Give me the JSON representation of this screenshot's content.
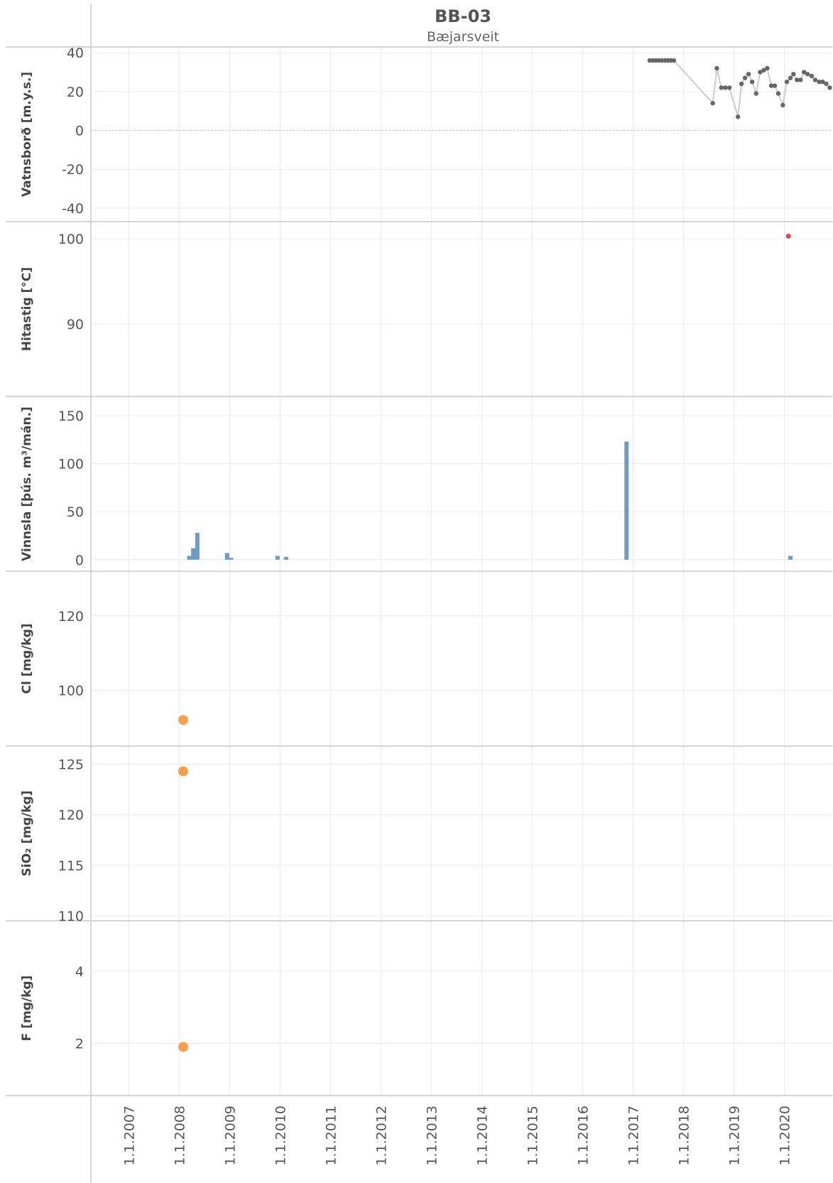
{
  "header": {
    "title": "BB-03",
    "subtitle": "Bæjarsveit"
  },
  "x_axis": {
    "tick_labels": [
      "1.1.2007",
      "1.1.2008",
      "1.1.2009",
      "1.1.2010",
      "1.1.2011",
      "1.1.2012",
      "1.1.2013",
      "1.1.2014",
      "1.1.2015",
      "1.1.2016",
      "1.1.2017",
      "1.1.2018",
      "1.1.2019",
      "1.1.2020"
    ],
    "range": [
      2006.25,
      2020.95
    ]
  },
  "colors": {
    "water_level_points": "#666666",
    "water_level_line": "#cccccc",
    "temperature": "#e8424b",
    "production": "#6f9bc6",
    "chemistry": "#f5a04f",
    "grid": "#ececec",
    "axis": "#c8c8c8"
  },
  "chart_data": [
    {
      "type": "line",
      "ylabel": "Vatnsborð [m.y.s.]",
      "ylim": [
        -47,
        43
      ],
      "yticks": [
        40,
        20,
        0,
        -20,
        -40
      ],
      "zero_line": true,
      "x": [
        2017.33,
        2017.39,
        2017.45,
        2017.51,
        2017.57,
        2017.63,
        2017.69,
        2017.75,
        2017.81,
        2018.58,
        2018.66,
        2018.75,
        2018.83,
        2018.91,
        2019.08,
        2019.15,
        2019.22,
        2019.29,
        2019.36,
        2019.44,
        2019.52,
        2019.59,
        2019.66,
        2019.74,
        2019.81,
        2019.88,
        2019.97,
        2020.05,
        2020.12,
        2020.18,
        2020.25,
        2020.32,
        2020.39,
        2020.46,
        2020.54,
        2020.61,
        2020.69,
        2020.76,
        2020.83,
        2020.9
      ],
      "y": [
        36,
        36,
        36,
        36,
        36,
        36,
        36,
        36,
        36,
        14,
        32,
        22,
        22,
        22,
        7,
        24,
        27,
        29,
        25,
        19,
        30,
        31,
        32,
        23,
        23,
        19,
        13,
        25,
        27,
        29,
        26,
        26,
        30,
        29,
        28,
        26,
        25,
        25,
        24,
        22
      ]
    },
    {
      "type": "scatter",
      "ylabel": "Hitastig [°C]",
      "ylim": [
        81.5,
        102
      ],
      "yticks": [
        100,
        90
      ],
      "x": [
        2020.08
      ],
      "y": [
        100.3
      ]
    },
    {
      "type": "bar",
      "ylabel": "Vinnsla [þús. m³/mán.]",
      "ylim": [
        -12,
        170
      ],
      "yticks": [
        150,
        100,
        50,
        0
      ],
      "x": [
        2008.2,
        2008.28,
        2008.36,
        2008.95,
        2009.03,
        2009.95,
        2010.12,
        2016.87,
        2020.12
      ],
      "values": [
        4,
        12,
        28,
        7,
        2,
        4,
        3,
        123,
        4
      ]
    },
    {
      "type": "scatter",
      "ylabel": "Cl [mg/kg]",
      "ylim": [
        85,
        132
      ],
      "yticks": [
        120,
        100
      ],
      "x": [
        2008.08
      ],
      "y": [
        92
      ]
    },
    {
      "type": "scatter",
      "ylabel": "SiO₂ [mg/kg]",
      "ylim": [
        109.5,
        126.8
      ],
      "yticks": [
        125,
        120,
        115,
        110
      ],
      "x": [
        2008.08
      ],
      "y": [
        124.3
      ]
    },
    {
      "type": "scatter",
      "ylabel": "F [mg/kg]",
      "ylim": [
        0.55,
        5.4
      ],
      "yticks": [
        4,
        2
      ],
      "x": [
        2008.08
      ],
      "y": [
        1.9
      ]
    }
  ]
}
